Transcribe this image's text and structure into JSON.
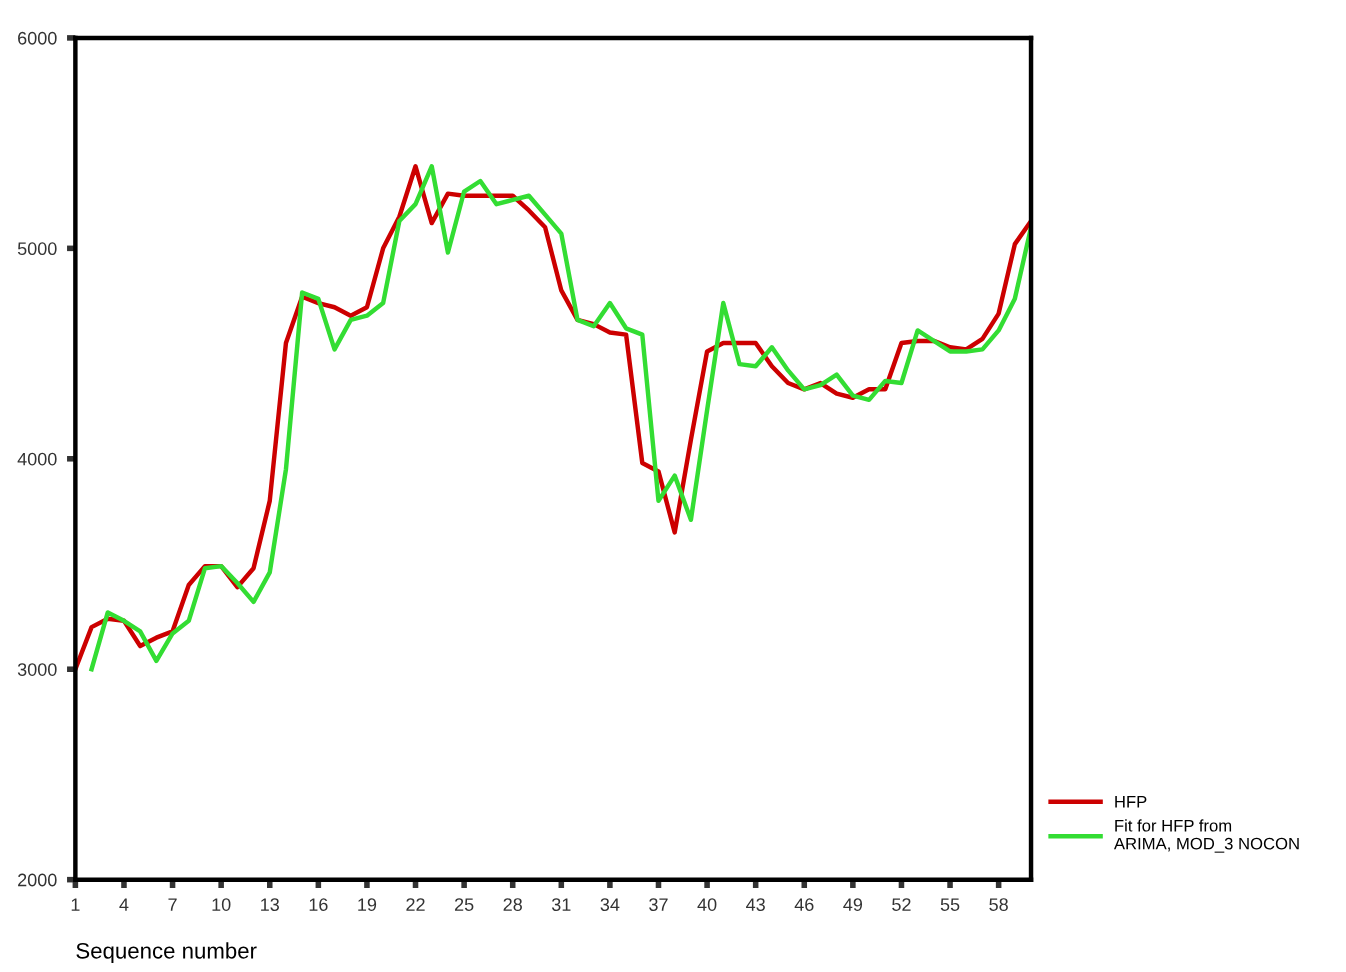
{
  "chart_data": {
    "type": "line",
    "xlabel": "Sequence number",
    "x": [
      1,
      2,
      3,
      4,
      5,
      6,
      7,
      8,
      9,
      10,
      11,
      12,
      13,
      14,
      15,
      16,
      17,
      18,
      19,
      20,
      21,
      22,
      23,
      24,
      25,
      26,
      27,
      28,
      29,
      30,
      31,
      32,
      33,
      34,
      35,
      36,
      37,
      38,
      39,
      40,
      41,
      42,
      43,
      44,
      45,
      46,
      47,
      48,
      49,
      50,
      51,
      52,
      53,
      54,
      55,
      56,
      57,
      58,
      59,
      60
    ],
    "series": [
      {
        "name": "HFP",
        "color": "#cc0000",
        "values": [
          3000,
          3200,
          3240,
          3230,
          3110,
          3150,
          3180,
          3400,
          3490,
          3490,
          3390,
          3480,
          3800,
          4550,
          4770,
          4740,
          4720,
          4680,
          4720,
          5000,
          5150,
          5390,
          5120,
          5260,
          5250,
          5250,
          5250,
          5250,
          5180,
          5100,
          4800,
          4660,
          4640,
          4600,
          4590,
          3980,
          3940,
          3650,
          4090,
          4510,
          4550,
          4550,
          4550,
          4440,
          4360,
          4330,
          4360,
          4310,
          4290,
          4330,
          4330,
          4550,
          4560,
          4560,
          4530,
          4520,
          4570,
          4690,
          5020,
          5130
        ]
      },
      {
        "name": "Fit for HFP from\nARIMA, MOD_3 NOCON",
        "color": "#33dd33",
        "values": [
          null,
          3000,
          3270,
          3230,
          3180,
          3040,
          3170,
          3230,
          3480,
          3490,
          3410,
          3320,
          3460,
          3950,
          4790,
          4760,
          4520,
          4660,
          4680,
          4740,
          5130,
          5210,
          5390,
          4980,
          5270,
          5320,
          5210,
          5230,
          5250,
          5160,
          5070,
          4660,
          4630,
          4740,
          4620,
          4590,
          3800,
          3920,
          3710,
          4230,
          4740,
          4450,
          4440,
          4530,
          4420,
          4330,
          4350,
          4400,
          4300,
          4280,
          4370,
          4360,
          4610,
          4560,
          4510,
          4510,
          4520,
          4610,
          4760,
          5100
        ]
      }
    ],
    "xlim": [
      1,
      60
    ],
    "xticks": [
      1,
      4,
      7,
      10,
      13,
      16,
      19,
      22,
      25,
      28,
      31,
      34,
      37,
      40,
      43,
      46,
      49,
      52,
      55,
      58
    ],
    "ylim": [
      2000,
      6000
    ],
    "yticks": [
      2000,
      3000,
      4000,
      5000,
      6000
    ],
    "grid": false,
    "legend": "right",
    "line_style": "solid",
    "marker": "none"
  }
}
